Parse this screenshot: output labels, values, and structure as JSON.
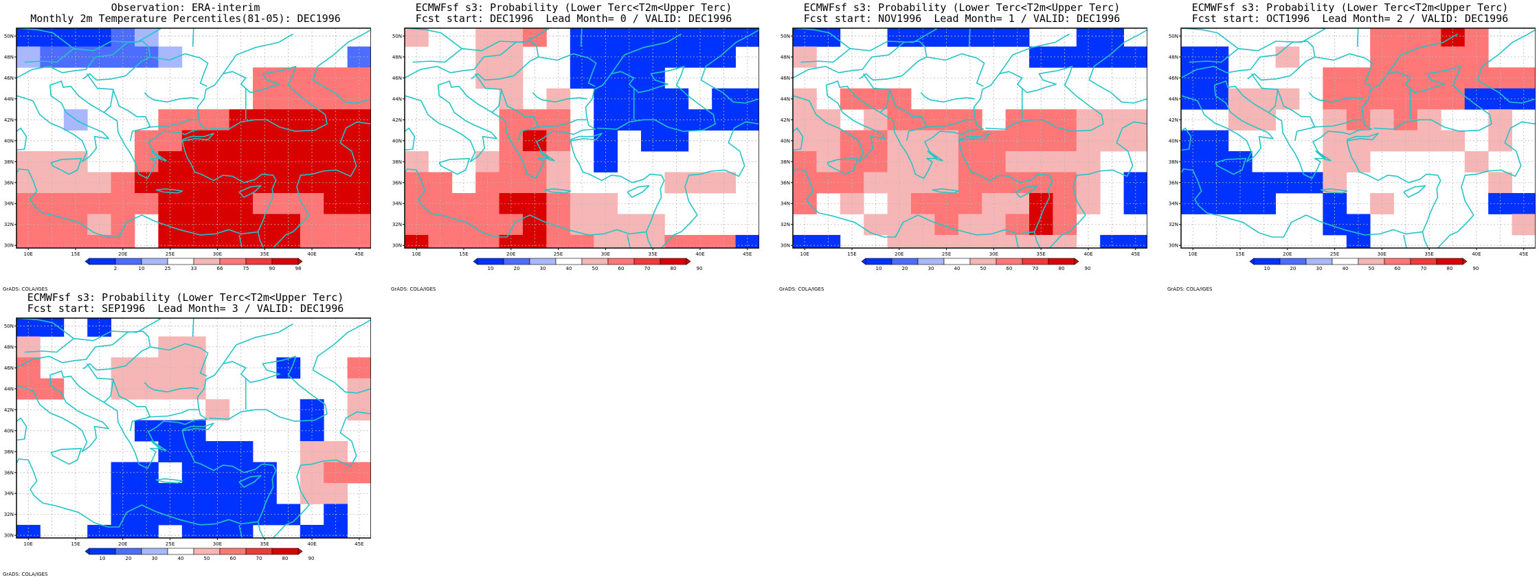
{
  "colors": {
    "b_strong": "#0033ff",
    "b_mid": "#4d6dff",
    "b_light": "#a8b8ff",
    "white": "#ffffff",
    "r_light": "#f6b6b6",
    "r_mid": "#ff7777",
    "r_strong": "#ef3a3a",
    "r_dark": "#d80000",
    "coast": "#22c4c8",
    "grid": "#b8b8b8"
  },
  "axes": {
    "lat_ticks": [
      "30N",
      "32N",
      "34N",
      "36N",
      "38N",
      "40N",
      "42N",
      "44N",
      "46N",
      "48N",
      "50N"
    ],
    "lon_ticks": [
      "10E",
      "15E",
      "20E",
      "25E",
      "30E",
      "35E",
      "40E",
      "45E"
    ]
  },
  "footer_text": "GrADS: COLA/IGES",
  "panels": [
    {
      "id": "obs",
      "title1": "Observation: ERA-interim",
      "title2": "Monthly 2m Temperature Percentiles(81-05): DEC1996",
      "colorbar": {
        "labels": [
          "2",
          "10",
          "25",
          "33",
          "66",
          "75",
          "90",
          "98"
        ],
        "colors": [
          "b_strong",
          "b_mid",
          "b_light",
          "white",
          "r_light",
          "r_mid",
          "r_strong",
          "r_dark"
        ]
      },
      "grid": [
        "ffffmlwwwwwwwww",
        "lmmmmmlwwwwwwwm",
        "wwwwwwwwwwRRRRR",
        "wwwwwwwwwwRRRRR",
        "wwlwwwRRRDDDDDD",
        "wwwwwRRDDDDDDDD",
        "rrrwwRDDDDDDDDD",
        "rrrrRDDDDDDDDDD",
        "RRRRRRDDDDRRRDD",
        "RRRrRwDDDDDDRRR",
        "RRRRRwDDDDDDRRR"
      ]
    },
    {
      "id": "lead0",
      "title1": "ECMWFsf s3: Probability (Lower Terc<T2m<Upper Terc)",
      "title2": "Fcst start: DEC1996  Lead Month= 0 / VALID: DEC1996",
      "colorbar": {
        "labels": [
          "10",
          "20",
          "30",
          "40",
          "50",
          "60",
          "70",
          "80",
          "90"
        ],
        "colors": [
          "b_strong",
          "b_mid",
          "b_light",
          "white",
          "r_light",
          "r_mid",
          "r_strong",
          "r_dark"
        ]
      },
      "grid": [
        "rwwrrRwffffffff",
        "wwwrrwwfffffffw",
        "wwwrrwwffffwwww",
        "wwwwrwrwffffwff",
        "wwwwRRRwfffffff",
        "wwwwRDRwfwffwww",
        "rwwrRRrwfwwwwww",
        "RRwRRRrwwwwrrrw",
        "RRRRDDRrrwwwwww",
        "RRRRRDRrrrrwwww",
        "DRRRDDRRrrrRRRf"
      ]
    },
    {
      "id": "lead1",
      "title1": "ECMWFsf s3: Probability (Lower Terc<T2m<Upper Terc)",
      "title2": "Fcst start: NOV1996  Lead Month= 1 / VALID: DEC1996",
      "colorbar": {
        "labels": [
          "10",
          "20",
          "30",
          "40",
          "50",
          "60",
          "70",
          "80",
          "90"
        ],
        "colors": [
          "b_strong",
          "b_mid",
          "b_light",
          "white",
          "r_light",
          "r_mid",
          "r_strong",
          "r_dark"
        ]
      },
      "grid": [
        "ffwwffffffwwffw",
        "rwwwwwwwwwfffff",
        "wwwwwwwwwwwwwww",
        "rwRRRwwwwwwwwww",
        "rrwrRRRRwRRRrrr",
        "rrRRrrrRRRRRrrr",
        "RrRRrrrRRrrrrww",
        "RRRrrrrRRRRRrwf",
        "RwrwrRRRrrDRrwf",
        "wwwrrrRrrRDRwww",
        "ffwwrrrrrrrrwff"
      ]
    },
    {
      "id": "lead2",
      "title1": "ECMWFsf s3: Probability (Lower Terc<T2m<Upper Terc)",
      "title2": "Fcst start: OCT1996  Lead Month= 2 / VALID: DEC1996",
      "colorbar": {
        "labels": [
          "10",
          "20",
          "30",
          "40",
          "50",
          "60",
          "70",
          "80",
          "90"
        ],
        "colors": [
          "b_strong",
          "b_mid",
          "b_light",
          "white",
          "r_light",
          "r_mid",
          "r_strong",
          "r_dark"
        ]
      },
      "grid": [
        "wwwwwwwwRRRDRww",
        "ffwwrwwwRRRRRww",
        "ffwwwwRRRRRRRRR",
        "ffrrrwRRRRRRfff",
        "wwrrwwrRrRrwwrw",
        "ffwwwwrrrrrrwrw",
        "fffwwwrrwwwwrww",
        "ffffffrwwwwwwrw",
        "ffffwwfwrwwwwff",
        "wwwwwwffwwwwwwr",
        "wwwwwwwfwwwwwww"
      ]
    },
    {
      "id": "lead3",
      "title1": "ECMWFsf s3: Probability (Lower Terc<T2m<Upper Terc)",
      "title2": "Fcst start: SEP1996  Lead Month= 3 / VALID: DEC1996",
      "colorbar": {
        "labels": [
          "10",
          "20",
          "30",
          "40",
          "50",
          "60",
          "70",
          "80",
          "90"
        ],
        "colors": [
          "b_strong",
          "b_mid",
          "b_light",
          "white",
          "r_light",
          "r_mid",
          "r_strong",
          "r_dark"
        ]
      },
      "grid": [
        "ffwfwwwwwwwwwww",
        "rwwwwwrrwwwwwww",
        "RwwwrrrrwwwfwwR",
        "RRwwrrrrwwwwwwr",
        "wwwwwwwwrwwwfwr",
        "wwwwwfffwwwwfww",
        "wwwwwwffffwwrrw",
        "wwwwffwffffwrRR",
        "wwwwfffffffwrrw",
        "wwwwffffffffwfw",
        "fwwfffwfffwwffw"
      ]
    }
  ]
}
